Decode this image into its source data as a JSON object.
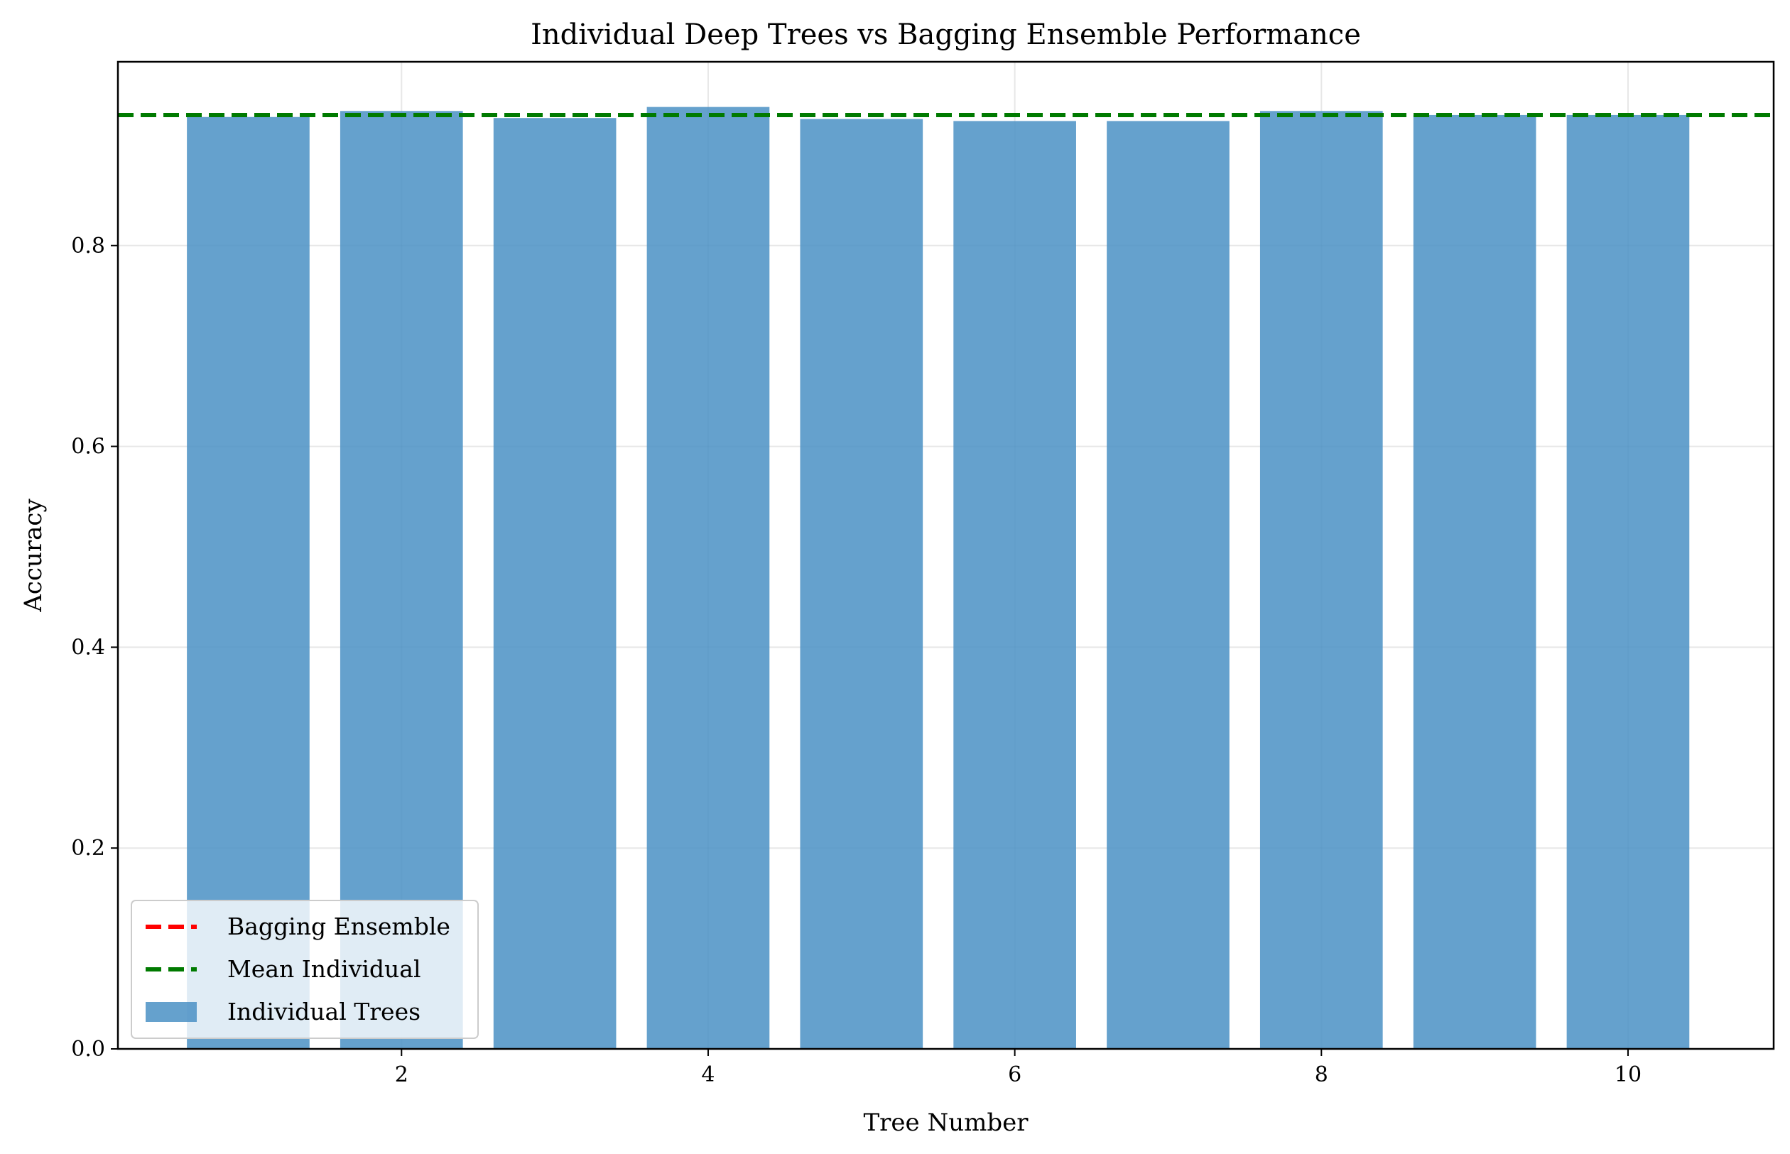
{
  "chart_data": {
    "type": "bar",
    "title": "Individual Deep Trees vs Bagging Ensemble Performance",
    "xlabel": "Tree Number",
    "ylabel": "Accuracy",
    "x": [
      1,
      2,
      3,
      4,
      5,
      6,
      7,
      8,
      9,
      10
    ],
    "values": [
      0.928,
      0.934,
      0.927,
      0.938,
      0.926,
      0.924,
      0.924,
      0.934,
      0.93,
      0.93
    ],
    "bar_width": 0.8,
    "xlim": [
      0.15,
      10.95
    ],
    "ylim": [
      0.0,
      0.983
    ],
    "xticks": [
      2,
      4,
      6,
      8,
      10
    ],
    "xtick_labels": [
      "2",
      "4",
      "6",
      "8",
      "10"
    ],
    "yticks": [
      0.0,
      0.2,
      0.4,
      0.6,
      0.8
    ],
    "ytick_labels": [
      "0.0",
      "0.2",
      "0.4",
      "0.6",
      "0.8"
    ],
    "grid": true,
    "bar_color": "#4a90c4",
    "reference_lines": [
      {
        "name": "Bagging Ensemble",
        "value": 0.93,
        "color": "#ff0000",
        "style": "dashed"
      },
      {
        "name": "Mean Individual",
        "value": 0.93,
        "color": "#007a00",
        "style": "dashed"
      }
    ],
    "legend": {
      "placement": "lower-left",
      "entries": [
        {
          "label": "Bagging Ensemble",
          "kind": "line",
          "color": "#ff0000"
        },
        {
          "label": "Mean Individual",
          "kind": "line",
          "color": "#007a00"
        },
        {
          "label": "Individual Trees",
          "kind": "patch",
          "color": "#4a90c4"
        }
      ]
    }
  }
}
